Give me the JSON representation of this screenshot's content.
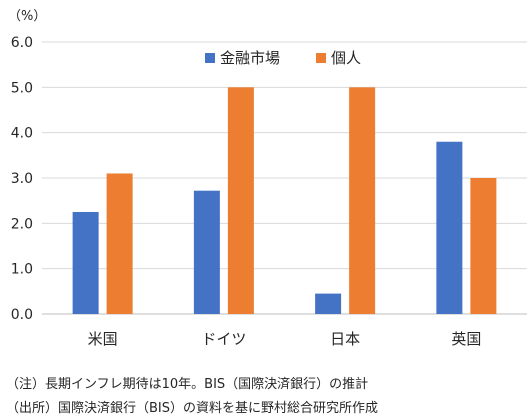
{
  "chart_data": {
    "type": "bar",
    "unit_label": "（%）",
    "categories": [
      "米国",
      "ドイツ",
      "日本",
      "英国"
    ],
    "series": [
      {
        "name": "金融市場",
        "color": "#4472C4",
        "values": [
          2.25,
          2.72,
          0.45,
          3.8
        ]
      },
      {
        "name": "個人",
        "color": "#ED7D31",
        "values": [
          3.1,
          5.0,
          5.0,
          3.0
        ]
      }
    ],
    "ylim": [
      0,
      6
    ],
    "yticks": [
      "0.0",
      "1.0",
      "2.0",
      "3.0",
      "4.0",
      "5.0",
      "6.0"
    ],
    "grid": true,
    "legend": "top-center"
  },
  "notes": {
    "note1": "（注）長期インフレ期待は10年。BIS（国際決済銀行）の推計",
    "note2": "（出所）国際決済銀行（BIS）の資料を基に野村総合研究所作成"
  }
}
